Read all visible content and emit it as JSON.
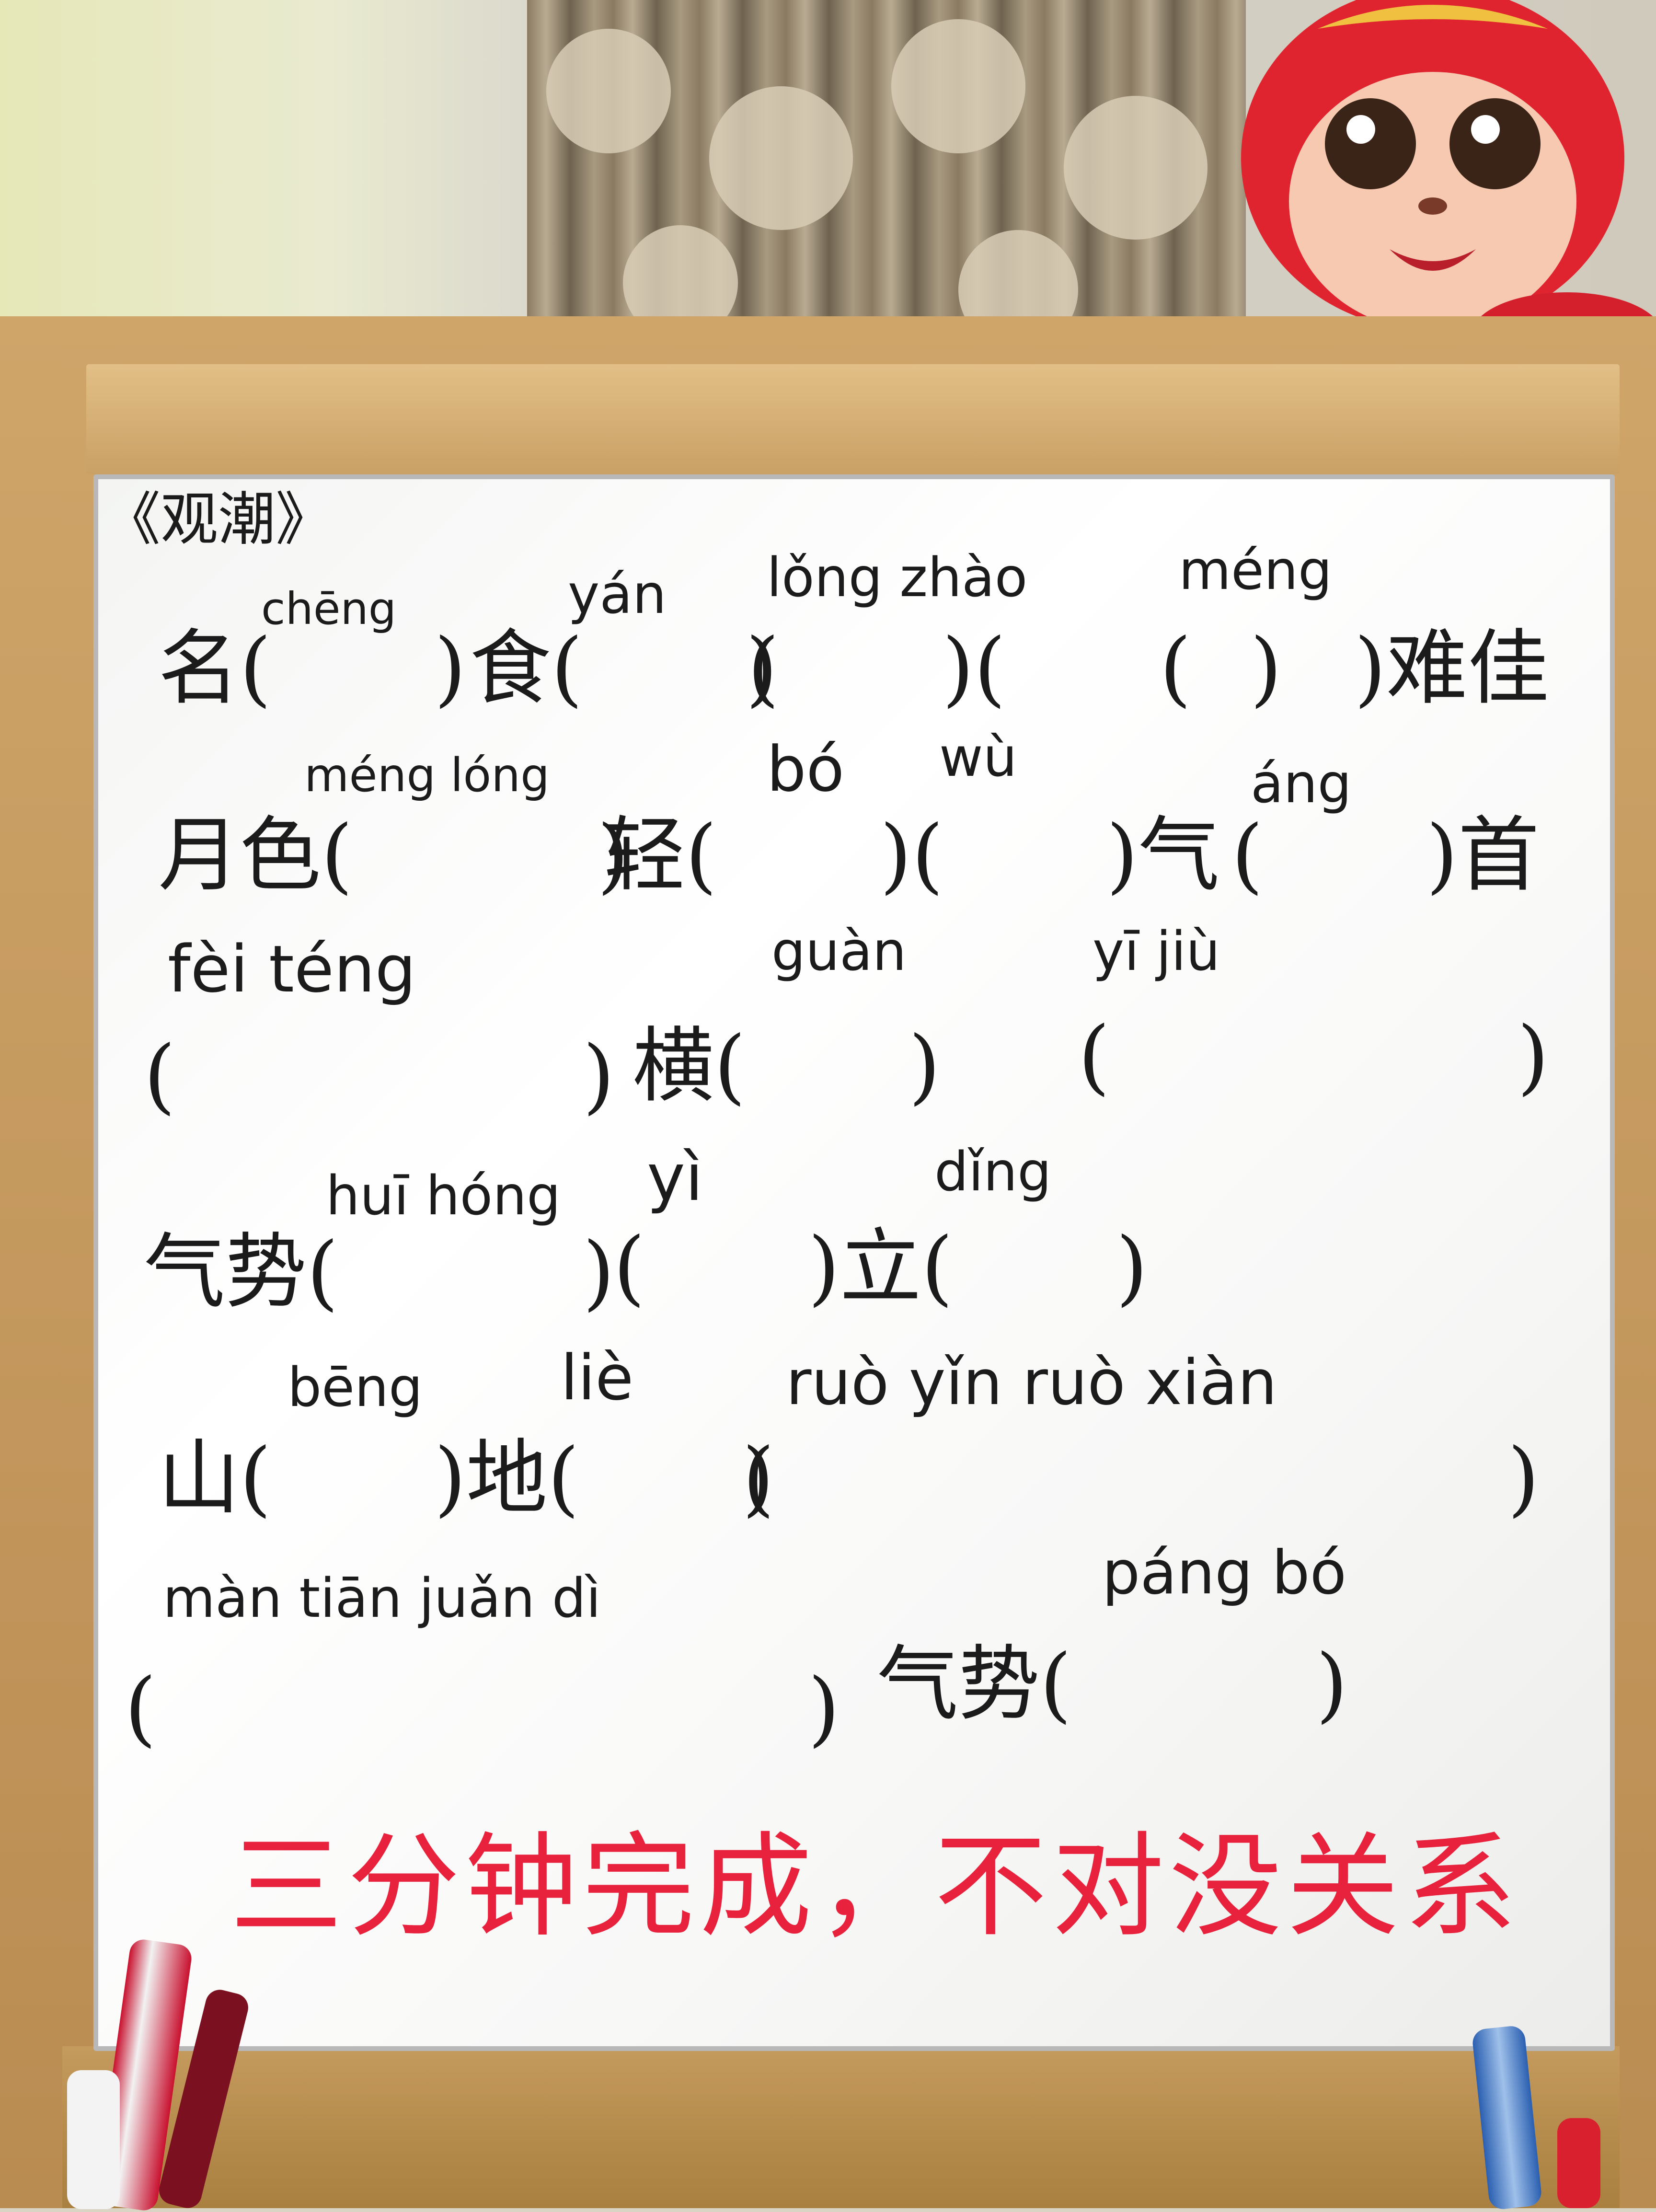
{
  "title": "《观潮》",
  "rows": [
    {
      "pinyin": [
        {
          "id": "cheng",
          "text": "chēng"
        },
        {
          "id": "yan",
          "text": "yán"
        },
        {
          "id": "long-zhao",
          "text": "lǒng zhào"
        },
        {
          "id": "meng",
          "text": "méng"
        }
      ],
      "line": [
        {
          "id": "ming",
          "text": "名(　　)"
        },
        {
          "id": "shi",
          "text": "食(　　)"
        },
        {
          "id": "blank-a",
          "text": "(　　)(　　　)"
        },
        {
          "id": "nanjia",
          "text": "(　　)难佳"
        }
      ]
    },
    {
      "pinyin": [
        {
          "id": "meng-long",
          "text": "méng lóng"
        },
        {
          "id": "bo",
          "text": "bó"
        },
        {
          "id": "wu",
          "text": "wù"
        },
        {
          "id": "ang",
          "text": "áng"
        }
      ],
      "line": [
        {
          "id": "yuese",
          "text": "月色(　　　)"
        },
        {
          "id": "qing",
          "text": "轻(　　)(　　)气"
        },
        {
          "id": "shou",
          "text": "(　　)首"
        }
      ]
    },
    {
      "pinyin": [
        {
          "id": "fei-teng",
          "text": "fèi téng"
        },
        {
          "id": "guan",
          "text": "guàn"
        },
        {
          "id": "yi-jiu",
          "text": "yī jiù"
        }
      ],
      "line": [
        {
          "id": "blank-b",
          "text": "(　　　　　)"
        },
        {
          "id": "heng",
          "text": "横(　　)"
        },
        {
          "id": "blank-c",
          "text": "(　　　　　)"
        }
      ]
    },
    {
      "pinyin": [
        {
          "id": "hui-hong",
          "text": "huī hóng"
        },
        {
          "id": "yi",
          "text": "yì"
        },
        {
          "id": "ding",
          "text": "dǐng"
        }
      ],
      "line": [
        {
          "id": "qishi-a",
          "text": "气势(　　　)"
        },
        {
          "id": "li",
          "text": "(　　)立(　　)"
        }
      ]
    },
    {
      "pinyin": [
        {
          "id": "beng",
          "text": "bēng"
        },
        {
          "id": "lie",
          "text": "liè"
        },
        {
          "id": "ruo",
          "text": "ruò yǐn ruò xiàn"
        }
      ],
      "line": [
        {
          "id": "shan",
          "text": "山(　　)地(　　)"
        },
        {
          "id": "blank-d",
          "text": "(　　　　　　　　　)"
        }
      ]
    },
    {
      "pinyin": [
        {
          "id": "mantian",
          "text": "màn tiān juǎn dì"
        },
        {
          "id": "pang-bo",
          "text": "páng bó"
        }
      ],
      "line": [
        {
          "id": "blank-e",
          "text": "(　　　　　　　　)"
        },
        {
          "id": "qishi-b",
          "text": "气势(　　　)"
        }
      ]
    }
  ],
  "note": "三分钟完成，不对没关系",
  "colors": {
    "ink": "#1b1b1b",
    "red_marker": "#e8213d",
    "board": "#f8f8f6",
    "frame": "#c9a066"
  }
}
